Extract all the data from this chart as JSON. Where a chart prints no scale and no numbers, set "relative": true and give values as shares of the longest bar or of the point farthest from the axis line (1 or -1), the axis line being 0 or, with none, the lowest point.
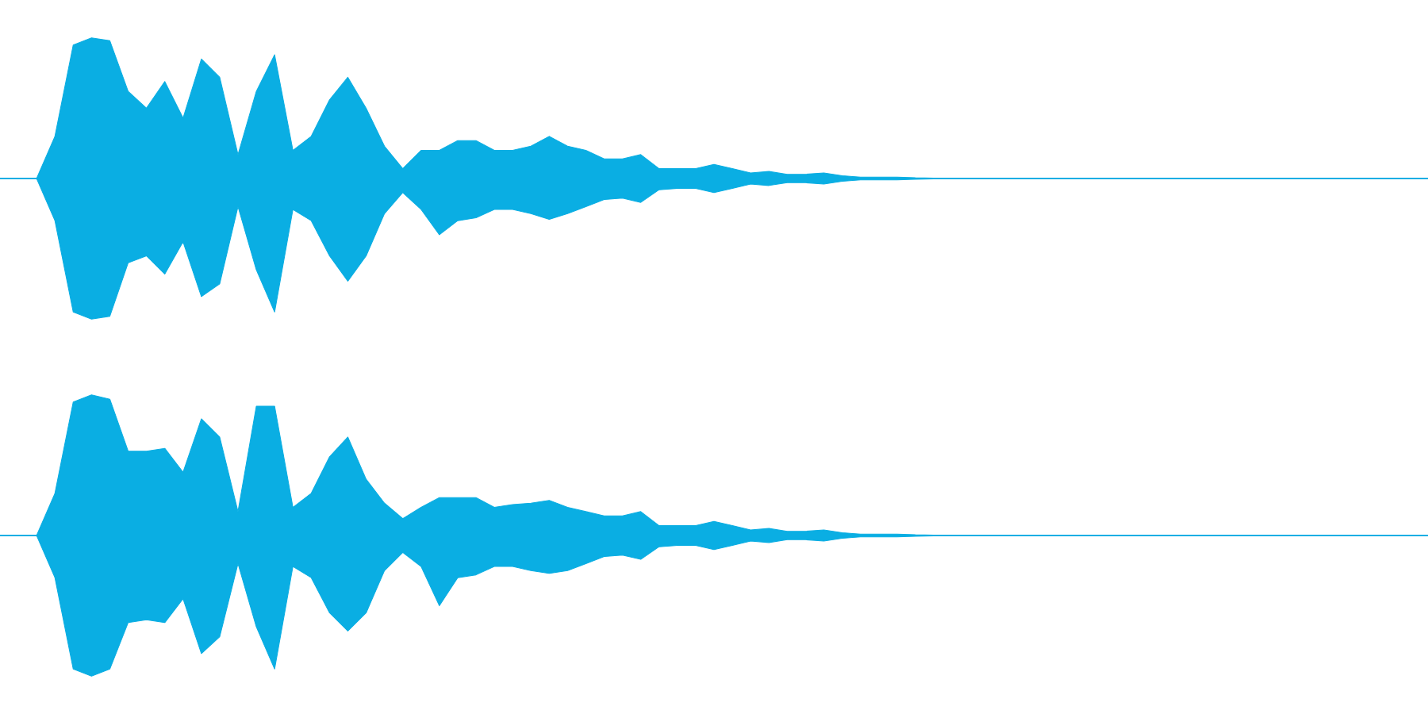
{
  "chart_data": [
    {
      "type": "area",
      "relative": true,
      "categories": [
        null,
        null,
        null,
        null,
        null,
        null,
        null,
        null,
        null,
        null,
        null,
        null,
        null,
        null,
        null,
        null,
        null,
        null,
        null,
        null,
        null,
        null,
        null,
        null,
        null,
        null,
        null,
        null,
        null,
        null,
        null,
        null,
        null,
        null,
        null,
        null,
        null,
        null,
        null,
        null,
        null,
        null,
        null,
        null,
        null,
        null,
        null,
        null,
        null,
        null,
        null,
        null,
        null,
        null,
        null,
        null,
        null,
        null,
        null,
        null,
        null,
        null,
        null,
        null,
        null,
        null,
        null,
        null,
        null,
        null,
        null,
        null,
        null,
        null,
        null,
        null,
        null,
        null,
        null
      ],
      "series": [
        {
          "color": "#0aaee3",
          "values": [
            0,
            0,
            0,
            0.3,
            0.95,
            1.0,
            0.98,
            0.62,
            0.5,
            0.69,
            0.43,
            0.85,
            0.72,
            0.17,
            0.62,
            0.88,
            0.2,
            0.3,
            0.56,
            0.72,
            0.5,
            0.23,
            0.07,
            0.2,
            0.2,
            0.27,
            0.27,
            0.2,
            0.2,
            0.23,
            0.3,
            0.23,
            0.2,
            0.14,
            0.14,
            0.17,
            0.07,
            0.07,
            0.07,
            0.1,
            0.07,
            0.04,
            0.05,
            0.03,
            0.03,
            0.04,
            0.02,
            0.01,
            0.01,
            0.01,
            0.005,
            0.003,
            0,
            0,
            0,
            0,
            0,
            0,
            0,
            0,
            0,
            0,
            0,
            0,
            0,
            0,
            0,
            0,
            0,
            0,
            0,
            0,
            0,
            0,
            0,
            0,
            0,
            0,
            0
          ]
        },
        {
          "color": "#0aaee3",
          "values": [
            0,
            0,
            0,
            -0.3,
            -0.95,
            -1.0,
            -0.98,
            -0.6,
            -0.55,
            -0.68,
            -0.45,
            -0.84,
            -0.75,
            -0.2,
            -0.65,
            -0.95,
            -0.22,
            -0.3,
            -0.55,
            -0.73,
            -0.55,
            -0.25,
            -0.1,
            -0.22,
            -0.4,
            -0.3,
            -0.28,
            -0.22,
            -0.22,
            -0.25,
            -0.29,
            -0.25,
            -0.2,
            -0.15,
            -0.14,
            -0.17,
            -0.08,
            -0.07,
            -0.07,
            -0.1,
            -0.07,
            -0.04,
            -0.05,
            -0.03,
            -0.03,
            -0.04,
            -0.02,
            -0.01,
            -0.01,
            -0.01,
            -0.005,
            -0.003,
            0,
            0,
            0,
            0,
            0,
            0,
            0,
            0,
            0,
            0,
            0,
            0,
            0,
            0,
            0,
            0,
            0,
            0,
            0,
            0,
            0,
            0,
            0,
            0,
            0,
            0,
            0
          ]
        }
      ]
    },
    {
      "type": "area",
      "relative": true,
      "categories": [
        null,
        null,
        null,
        null,
        null,
        null,
        null,
        null,
        null,
        null,
        null,
        null,
        null,
        null,
        null,
        null,
        null,
        null,
        null,
        null,
        null,
        null,
        null,
        null,
        null,
        null,
        null,
        null,
        null,
        null,
        null,
        null,
        null,
        null,
        null,
        null,
        null,
        null,
        null,
        null,
        null,
        null,
        null,
        null,
        null,
        null,
        null,
        null,
        null,
        null,
        null,
        null,
        null,
        null,
        null,
        null,
        null,
        null,
        null,
        null,
        null,
        null,
        null,
        null,
        null,
        null,
        null,
        null,
        null,
        null,
        null,
        null,
        null,
        null,
        null,
        null,
        null,
        null,
        null
      ],
      "series": [
        {
          "color": "#0aaee3",
          "values": [
            0,
            0,
            0,
            0.3,
            0.95,
            1.0,
            0.97,
            0.6,
            0.6,
            0.62,
            0.45,
            0.83,
            0.7,
            0.17,
            0.92,
            0.92,
            0.2,
            0.3,
            0.56,
            0.7,
            0.4,
            0.23,
            0.12,
            0.2,
            0.27,
            0.27,
            0.27,
            0.2,
            0.22,
            0.23,
            0.25,
            0.2,
            0.17,
            0.14,
            0.14,
            0.17,
            0.07,
            0.07,
            0.07,
            0.1,
            0.07,
            0.04,
            0.05,
            0.03,
            0.03,
            0.04,
            0.02,
            0.01,
            0.01,
            0.01,
            0.005,
            0.003,
            0,
            0,
            0,
            0,
            0,
            0,
            0,
            0,
            0,
            0,
            0,
            0,
            0,
            0,
            0,
            0,
            0,
            0,
            0,
            0,
            0,
            0,
            0,
            0,
            0,
            0,
            0
          ]
        },
        {
          "color": "#0aaee3",
          "values": [
            0,
            0,
            0,
            -0.3,
            -0.95,
            -1.0,
            -0.95,
            -0.62,
            -0.6,
            -0.62,
            -0.45,
            -0.84,
            -0.72,
            -0.2,
            -0.65,
            -0.95,
            -0.22,
            -0.3,
            -0.55,
            -0.68,
            -0.55,
            -0.25,
            -0.12,
            -0.22,
            -0.5,
            -0.3,
            -0.28,
            -0.22,
            -0.22,
            -0.25,
            -0.27,
            -0.25,
            -0.2,
            -0.15,
            -0.14,
            -0.17,
            -0.08,
            -0.07,
            -0.07,
            -0.1,
            -0.07,
            -0.04,
            -0.05,
            -0.03,
            -0.03,
            -0.04,
            -0.02,
            -0.01,
            -0.01,
            -0.01,
            -0.005,
            -0.003,
            0,
            0,
            0,
            0,
            0,
            0,
            0,
            0,
            0,
            0,
            0,
            0,
            0,
            0,
            0,
            0,
            0,
            0,
            0,
            0,
            0,
            0,
            0,
            0,
            0,
            0,
            0
          ]
        }
      ]
    }
  ]
}
